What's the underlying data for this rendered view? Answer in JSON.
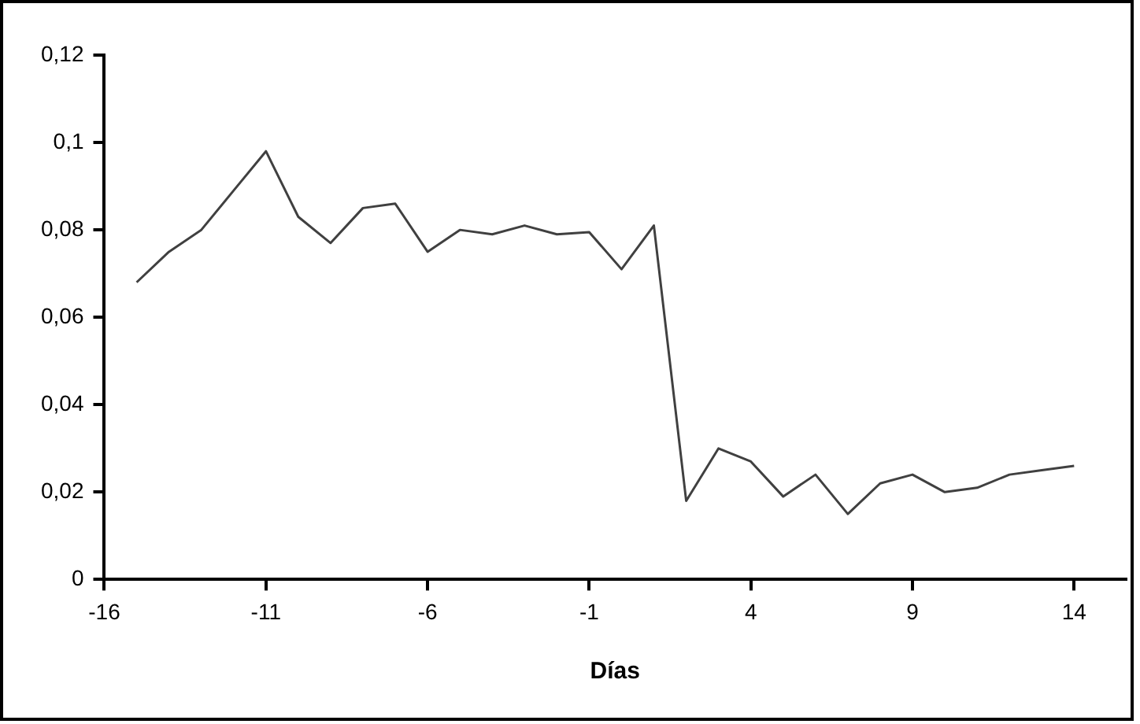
{
  "chart_data": {
    "type": "line",
    "xlabel": "Días",
    "x": [
      -15,
      -14,
      -13,
      -12,
      -11,
      -10,
      -9,
      -8,
      -7,
      -6,
      -5,
      -4,
      -3,
      -2,
      -1,
      0,
      1,
      2,
      3,
      4,
      5,
      6,
      7,
      8,
      9,
      10,
      11,
      12,
      13,
      14
    ],
    "series": [
      {
        "color": "#404040",
        "values": [
          0.068,
          0.075,
          0.08,
          0.089,
          0.098,
          0.083,
          0.077,
          0.085,
          0.086,
          0.075,
          0.08,
          0.079,
          0.081,
          0.079,
          0.0795,
          0.071,
          0.081,
          0.018,
          0.03,
          0.027,
          0.019,
          0.024,
          0.015,
          0.022,
          0.024,
          0.02,
          0.021,
          0.024,
          0.025,
          0.026
        ]
      }
    ],
    "xlim": [
      -16,
      15.6
    ],
    "xticks": [
      -16,
      -11,
      -6,
      -1,
      4,
      9,
      14
    ],
    "ylim": [
      0,
      0.12
    ],
    "yticks": [
      {
        "value": 0,
        "label": "0"
      },
      {
        "value": 0.02,
        "label": "0,02"
      },
      {
        "value": 0.04,
        "label": "0,04"
      },
      {
        "value": 0.06,
        "label": "0,06"
      },
      {
        "value": 0.08,
        "label": "0,08"
      },
      {
        "value": 0.1,
        "label": "0,1"
      },
      {
        "value": 0.12,
        "label": "0,12"
      }
    ],
    "grid": false,
    "legend": false,
    "marker": "none",
    "line_style": "solid"
  }
}
